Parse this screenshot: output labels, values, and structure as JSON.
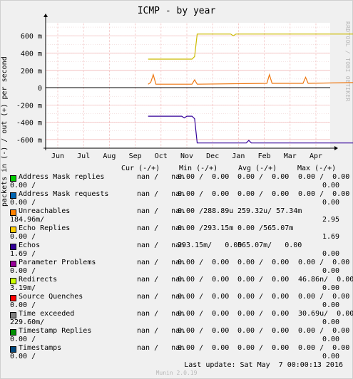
{
  "chart_data": {
    "type": "line",
    "title": "ICMP - by year",
    "ylabel": "packets in (-) / out (+) per second",
    "xlabel": "",
    "x_ticks": [
      "Jun",
      "Jul",
      "Aug",
      "Sep",
      "Oct",
      "Nov",
      "Dec",
      "Jan",
      "Feb",
      "Mar",
      "Apr"
    ],
    "y_ticks": [
      "600 m",
      "400 m",
      "200 m",
      "0",
      "-200 m",
      "-400 m",
      "-600 m"
    ],
    "y_tick_values": [
      0.6,
      0.4,
      0.2,
      0,
      -0.2,
      -0.4,
      -0.6
    ],
    "ylim": [
      -0.7,
      0.75
    ],
    "grid": true,
    "series": [
      {
        "name": "Echo Replies",
        "color": "#ccbb00",
        "points": [
          [
            3.5,
            0.33
          ],
          [
            5.2,
            0.33
          ],
          [
            5.3,
            0.36
          ],
          [
            5.4,
            0.62
          ],
          [
            6.7,
            0.62
          ],
          [
            6.8,
            0.6
          ],
          [
            6.9,
            0.62
          ],
          [
            11.5,
            0.62
          ]
        ]
      },
      {
        "name": "Unreachables",
        "color": "#ee7711",
        "points": [
          [
            3.5,
            0.04
          ],
          [
            3.6,
            0.06
          ],
          [
            3.7,
            0.15
          ],
          [
            3.8,
            0.04
          ],
          [
            5.2,
            0.04
          ],
          [
            5.3,
            0.09
          ],
          [
            5.4,
            0.04
          ],
          [
            8.1,
            0.05
          ],
          [
            8.2,
            0.15
          ],
          [
            8.3,
            0.05
          ],
          [
            9.5,
            0.05
          ],
          [
            9.6,
            0.12
          ],
          [
            9.7,
            0.05
          ],
          [
            11.5,
            0.06
          ]
        ]
      },
      {
        "name": "Echos",
        "color": "#330099",
        "points": [
          [
            3.5,
            -0.33
          ],
          [
            4.8,
            -0.33
          ],
          [
            4.9,
            -0.35
          ],
          [
            5.0,
            -0.33
          ],
          [
            5.2,
            -0.33
          ],
          [
            5.3,
            -0.36
          ],
          [
            5.4,
            -0.64
          ],
          [
            7.3,
            -0.64
          ],
          [
            7.4,
            -0.61
          ],
          [
            7.5,
            -0.64
          ],
          [
            11.5,
            -0.64
          ]
        ]
      }
    ]
  },
  "branding": {
    "side_text": "RRDTOOL / TOBI OETIKER",
    "munin": "Munin 2.0.19"
  },
  "legend_head": {
    "cur": "Cur (-/+)",
    "min": "Min (-/+)",
    "avg": "Avg (-/+)",
    "max": "Max (-/+)"
  },
  "legend": [
    {
      "name": "Address Mask replies",
      "color": "#00cc00",
      "cur": "nan /   nan",
      "min": "0.00 /  0.00",
      "avg": "0.00 /  0.00",
      "max": "0.00 /  0.00",
      "line2": "0.00 /",
      "line2r": "0.00"
    },
    {
      "name": "Address Mask requests",
      "color": "#0066b3",
      "cur": "nan /   nan",
      "min": "0.00 /  0.00",
      "avg": "0.00 /  0.00",
      "max": "0.00 /  0.00",
      "line2": "0.00 /",
      "line2r": "0.00"
    },
    {
      "name": "Unreachables",
      "color": "#ff8000",
      "cur": "nan /   nan",
      "min": "0.00 /288.89u",
      "avg": "259.32u/ 57.34m",
      "max": "",
      "line2": "184.96m/",
      "line2r": "2.95"
    },
    {
      "name": "Echo Replies",
      "color": "#ffcc00",
      "cur": "nan /   nan",
      "min": "0.00 /293.15m",
      "avg": "0.00 /565.07m",
      "max": "",
      "line2": "0.00 /",
      "line2r": "1.69"
    },
    {
      "name": "Echos",
      "color": "#330099",
      "cur": "nan /   nan",
      "min": "293.15m/   0.00",
      "avg": "565.07m/   0.00",
      "max": "",
      "line2": "1.69 /",
      "line2r": "0.00"
    },
    {
      "name": "Parameter Problems",
      "color": "#990099",
      "cur": "nan /   nan",
      "min": "0.00 /  0.00",
      "avg": "0.00 /  0.00",
      "max": "0.00 /  0.00",
      "line2": "0.00 /",
      "line2r": "0.00"
    },
    {
      "name": "Redirects",
      "color": "#ccff00",
      "cur": "nan /   nan",
      "min": "0.00 /  0.00",
      "avg": "0.00 /  0.00",
      "max": "46.86n/  0.00",
      "line2": "3.19m/",
      "line2r": "0.00"
    },
    {
      "name": "Source Quenches",
      "color": "#ff0000",
      "cur": "nan /   nan",
      "min": "0.00 /  0.00",
      "avg": "0.00 /  0.00",
      "max": "0.00 /  0.00",
      "line2": "0.00 /",
      "line2r": "0.00"
    },
    {
      "name": "Time exceeded",
      "color": "#808080",
      "cur": "nan /   nan",
      "min": "0.00 /  0.00",
      "avg": "0.00 /  0.00",
      "max": "30.69u/  0.00",
      "line2": "229.60m/",
      "line2r": "0.00"
    },
    {
      "name": "Timestamp Replies",
      "color": "#008f00",
      "cur": "nan /   nan",
      "min": "0.00 /  0.00",
      "avg": "0.00 /  0.00",
      "max": "0.00 /  0.00",
      "line2": "0.00 /",
      "line2r": "0.00"
    },
    {
      "name": "Timestamps",
      "color": "#00487d",
      "cur": "nan /   nan",
      "min": "0.00 /  0.00",
      "avg": "0.00 /  0.00",
      "max": "0.00 /  0.00",
      "line2": "0.00 /",
      "line2r": "0.00"
    }
  ],
  "footer": "Last update: Sat May  7 00:00:13 2016"
}
